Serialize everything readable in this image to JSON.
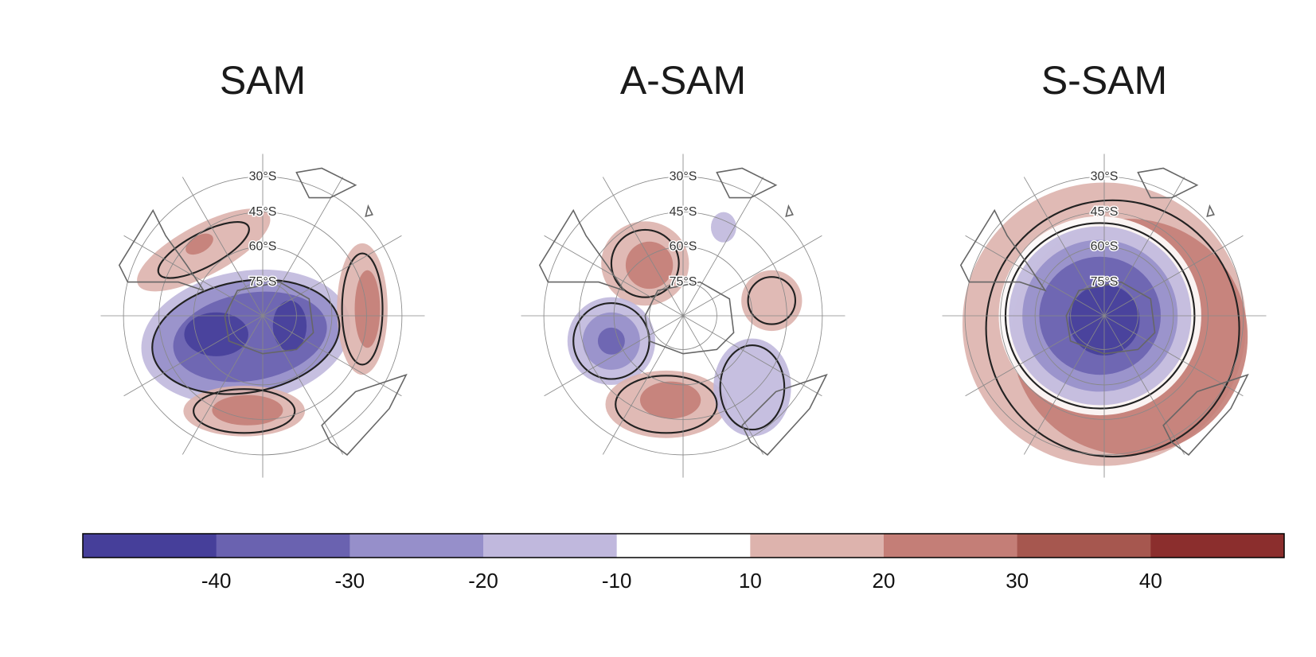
{
  "panels": [
    {
      "title": "SAM"
    },
    {
      "title": "A-SAM"
    },
    {
      "title": "S-SAM"
    }
  ],
  "latitude_labels": [
    "30°S",
    "45°S",
    "60°S",
    "75°S"
  ],
  "colorbar": {
    "colors": [
      "#463f9a",
      "#6a62b0",
      "#968fca",
      "#c0b8dd",
      "#ffffff",
      "#ddb3ad",
      "#c47e77",
      "#a6574f",
      "#8b2e2d"
    ],
    "ticks": [
      -40,
      -30,
      -20,
      -10,
      10,
      20,
      30,
      40
    ]
  }
}
